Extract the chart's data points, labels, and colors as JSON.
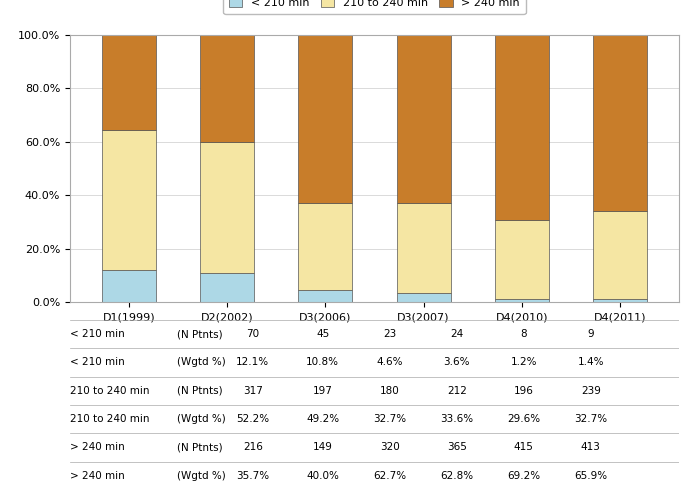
{
  "categories": [
    "D1(1999)",
    "D2(2002)",
    "D3(2006)",
    "D3(2007)",
    "D4(2010)",
    "D4(2011)"
  ],
  "less210_pct": [
    12.1,
    10.8,
    4.6,
    3.6,
    1.2,
    1.4
  ],
  "mid_pct": [
    52.2,
    49.2,
    32.7,
    33.6,
    29.6,
    32.7
  ],
  "more240_pct": [
    35.7,
    40.0,
    62.7,
    62.8,
    69.2,
    65.9
  ],
  "color_less210": "#add8e6",
  "color_mid": "#f5e6a3",
  "color_more240": "#c87d2a",
  "legend_labels": [
    "< 210 min",
    "210 to 240 min",
    "> 240 min"
  ],
  "table_rows": [
    [
      "< 210 min",
      "(N Ptnts)",
      "70",
      "45",
      "23",
      "24",
      "8",
      "9"
    ],
    [
      "< 210 min",
      "(Wgtd %)",
      "12.1%",
      "10.8%",
      "4.6%",
      "3.6%",
      "1.2%",
      "1.4%"
    ],
    [
      "210 to 240 min",
      "(N Ptnts)",
      "317",
      "197",
      "180",
      "212",
      "196",
      "239"
    ],
    [
      "210 to 240 min",
      "(Wgtd %)",
      "52.2%",
      "49.2%",
      "32.7%",
      "33.6%",
      "29.6%",
      "32.7%"
    ],
    [
      "> 240 min",
      "(N Ptnts)",
      "216",
      "149",
      "320",
      "365",
      "415",
      "413"
    ],
    [
      "> 240 min",
      "(Wgtd %)",
      "35.7%",
      "40.0%",
      "62.7%",
      "62.8%",
      "69.2%",
      "65.9%"
    ]
  ],
  "ylim": [
    0,
    100
  ],
  "ylabel_ticks": [
    0,
    20,
    40,
    60,
    80,
    100
  ],
  "background_color": "#ffffff",
  "bar_width": 0.55
}
